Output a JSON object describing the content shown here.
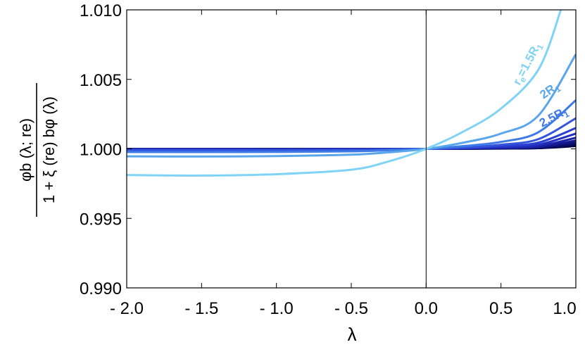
{
  "chart_data": {
    "type": "line",
    "title": "",
    "xlabel": "λ",
    "ylabel": {
      "numerator": "φ_b(λ; r_e)",
      "denominator": "1 + ξ(r_e) b_φ(λ)",
      "numerator_display": "φb (λ; re)",
      "denominator_display": "1 + ξ (re) bφ (λ)"
    },
    "xlim": [
      -2.0,
      1.0
    ],
    "ylim": [
      0.99,
      1.01
    ],
    "x_ticks": [
      -2.0,
      -1.5,
      -1.0,
      -0.5,
      0.0,
      0.5,
      1.0
    ],
    "x_tick_labels": [
      "- 2.0",
      "- 1.5",
      "- 1.0",
      "- 0.5",
      "0.0",
      "0.5",
      "1.0"
    ],
    "y_ticks": [
      0.99,
      0.995,
      1.0,
      1.005,
      1.01
    ],
    "y_tick_labels": [
      "0.990",
      "0.995",
      "1.000",
      "1.005",
      "1.010"
    ],
    "grid": false,
    "legend": "none",
    "reference_line": {
      "x": 0.0
    },
    "series": [
      {
        "name": "r_e=1.5R_1",
        "color": "#7fd3f7",
        "x": [
          -2.0,
          -1.5,
          -1.0,
          -0.5,
          -0.25,
          0.0,
          0.25,
          0.5,
          0.75,
          0.9
        ],
        "y": [
          0.99812,
          0.99808,
          0.99818,
          0.9985,
          0.9991,
          1.0,
          1.00125,
          1.0029,
          1.0057,
          1.01
        ]
      },
      {
        "name": "2R_1",
        "color": "#5aa6ec",
        "x": [
          -2.0,
          -1.5,
          -1.0,
          -0.5,
          -0.25,
          0.0,
          0.25,
          0.5,
          0.75,
          1.0
        ],
        "y": [
          0.99946,
          0.99945,
          0.99948,
          0.99958,
          0.99975,
          1.0,
          1.00045,
          1.0011,
          1.0024,
          1.0068
        ]
      },
      {
        "name": "2.5R_1",
        "color": "#3f7be6",
        "x": [
          -2.0,
          -1.5,
          -1.0,
          -0.5,
          -0.25,
          0.0,
          0.25,
          0.5,
          0.75,
          1.0
        ],
        "y": [
          0.99977,
          0.99977,
          0.99978,
          0.99982,
          0.9999,
          1.0,
          1.0002,
          1.0005,
          1.0012,
          1.0035
        ]
      },
      {
        "name": "",
        "color": "#3355dd",
        "x": [
          -2.0,
          -1.5,
          -1.0,
          -0.5,
          -0.25,
          0.0,
          0.25,
          0.5,
          0.75,
          1.0
        ],
        "y": [
          0.99988,
          0.99988,
          0.99989,
          0.99991,
          0.99995,
          1.0,
          1.0001,
          1.0003,
          1.0007,
          1.0022
        ]
      },
      {
        "name": "",
        "color": "#2a3fd2",
        "x": [
          -2.0,
          -1.5,
          -1.0,
          -0.5,
          -0.25,
          0.0,
          0.25,
          0.5,
          0.75,
          1.0
        ],
        "y": [
          0.99993,
          0.99993,
          0.99993,
          0.99995,
          0.99997,
          1.0,
          1.00007,
          1.0002,
          1.00045,
          1.0015
        ]
      },
      {
        "name": "",
        "color": "#2230c0",
        "x": [
          -2.0,
          -1.5,
          -1.0,
          -0.5,
          -0.25,
          0.0,
          0.25,
          0.5,
          0.75,
          1.0
        ],
        "y": [
          0.99996,
          0.99996,
          0.99996,
          0.99997,
          0.99998,
          1.0,
          1.00005,
          1.00013,
          1.0003,
          1.0011
        ]
      },
      {
        "name": "",
        "color": "#1a22a8",
        "x": [
          -2.0,
          -1.5,
          -1.0,
          -0.5,
          -0.25,
          0.0,
          0.25,
          0.5,
          0.75,
          1.0
        ],
        "y": [
          0.99997,
          0.99997,
          0.99997,
          0.99998,
          0.99999,
          1.0,
          1.00003,
          1.00009,
          1.0002,
          1.0008
        ]
      },
      {
        "name": "",
        "color": "#141a8e",
        "x": [
          -2.0,
          -1.5,
          -1.0,
          -0.5,
          -0.25,
          0.0,
          0.25,
          0.5,
          0.75,
          1.0
        ],
        "y": [
          0.99998,
          0.99998,
          0.99998,
          0.99999,
          0.99999,
          1.0,
          1.00002,
          1.00006,
          1.00014,
          1.0006
        ]
      },
      {
        "name": "",
        "color": "#0d1276",
        "x": [
          -2.0,
          -1.5,
          -1.0,
          -0.5,
          -0.25,
          0.0,
          0.25,
          0.5,
          0.75,
          1.0
        ],
        "y": [
          0.99999,
          0.99999,
          0.99999,
          0.99999,
          1.0,
          1.0,
          1.00001,
          1.00004,
          1.0001,
          1.00045
        ]
      },
      {
        "name": "",
        "color": "#080b5e",
        "x": [
          -2.0,
          -1.5,
          -1.0,
          -0.5,
          -0.25,
          0.0,
          0.25,
          0.5,
          0.75,
          1.0
        ],
        "y": [
          0.99999,
          0.99999,
          0.99999,
          1.0,
          1.0,
          1.0,
          1.00001,
          1.00003,
          1.00007,
          1.00032
        ]
      },
      {
        "name": "",
        "color": "#040646",
        "x": [
          -2.0,
          -1.5,
          -1.0,
          -0.5,
          -0.25,
          0.0,
          0.25,
          0.5,
          0.75,
          1.0
        ],
        "y": [
          1.0,
          1.0,
          1.0,
          1.0,
          1.0,
          1.0,
          1.0,
          1.00002,
          1.00005,
          1.0002
        ]
      }
    ],
    "annotations": [
      {
        "series": "r_e=1.5R_1",
        "text_main": "r",
        "text_sub": "e",
        "text_after": "=1.5R",
        "text_sub2": "1",
        "color": "#7fd3f7"
      },
      {
        "series": "2R_1",
        "text_main": "2R",
        "text_sub": "1",
        "color": "#5aa6ec"
      },
      {
        "series": "2.5R_1",
        "text_main": "2.5R",
        "text_sub": "1",
        "color": "#3f7be6"
      }
    ]
  }
}
